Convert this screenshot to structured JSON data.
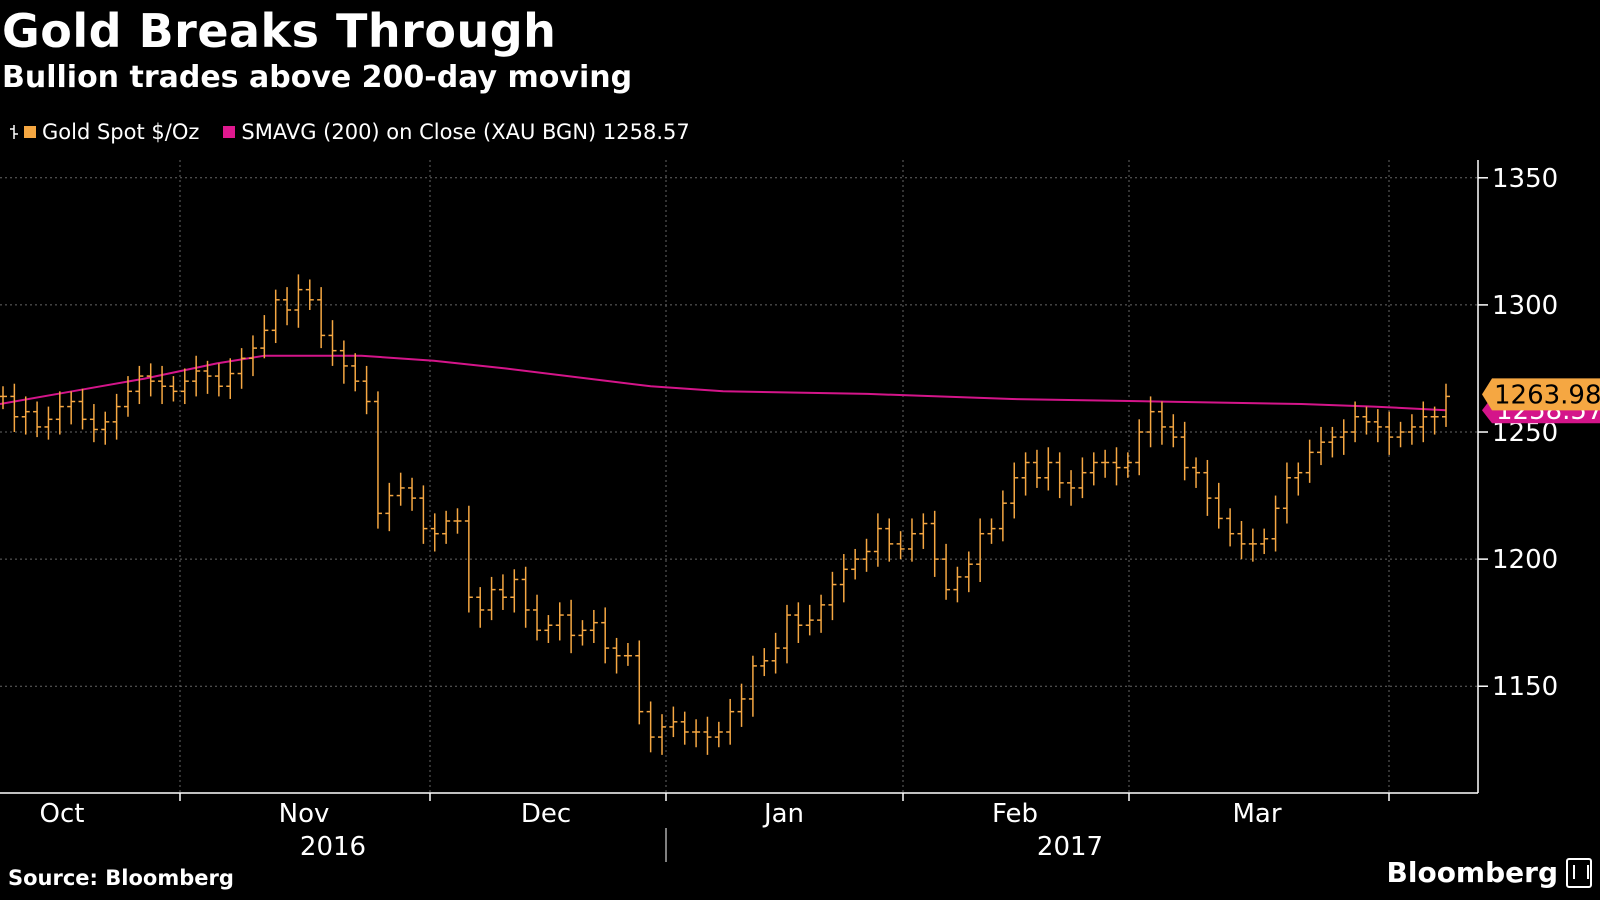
{
  "title": "Gold Breaks Through",
  "subtitle": "Bullion trades above 200-day moving",
  "source": "Source: Bloomberg",
  "brand": "Bloomberg",
  "legend": [
    {
      "label": "Gold Spot $/Oz",
      "color": "#f5a742"
    },
    {
      "label": "SMAVG (200) on Close (XAU BGN) 1258.57",
      "color": "#e0198f"
    }
  ],
  "colors": {
    "gold": "#f5a742",
    "sma": "#d4158a",
    "grid": "#666666",
    "axis": "#ffffff"
  },
  "chart_data": {
    "type": "line",
    "x_ticks": [
      "Oct",
      "Nov",
      "Dec",
      "Jan",
      "Feb",
      "Mar"
    ],
    "year_labels": [
      "2016",
      "2017"
    ],
    "y_ticks": [
      1150,
      1200,
      1250,
      1300,
      1350
    ],
    "ylim": [
      1108,
      1357
    ],
    "last_value_label": "1263.98",
    "sma_value_label": "1258.57",
    "series": [
      {
        "name": "Gold Spot $/Oz",
        "style": "ohlc",
        "values": [
          1264,
          1256,
          1258,
          1252,
          1255,
          1260,
          1262,
          1255,
          1251,
          1254,
          1260,
          1266,
          1272,
          1270,
          1268,
          1266,
          1270,
          1274,
          1272,
          1268,
          1273,
          1279,
          1283,
          1290,
          1302,
          1298,
          1306,
          1302,
          1288,
          1282,
          1276,
          1270,
          1262,
          1218,
          1225,
          1228,
          1224,
          1212,
          1210,
          1215,
          1215,
          1185,
          1180,
          1188,
          1185,
          1192,
          1180,
          1172,
          1174,
          1178,
          1170,
          1172,
          1175,
          1165,
          1162,
          1162,
          1140,
          1130,
          1134,
          1136,
          1132,
          1132,
          1130,
          1132,
          1140,
          1145,
          1158,
          1160,
          1165,
          1178,
          1174,
          1176,
          1182,
          1190,
          1196,
          1200,
          1203,
          1212,
          1206,
          1204,
          1210,
          1214,
          1200,
          1188,
          1193,
          1198,
          1210,
          1212,
          1222,
          1232,
          1238,
          1232,
          1238,
          1230,
          1228,
          1234,
          1238,
          1238,
          1236,
          1238,
          1250,
          1258,
          1252,
          1248,
          1236,
          1234,
          1224,
          1216,
          1210,
          1206,
          1206,
          1208,
          1220,
          1232,
          1234,
          1242,
          1246,
          1248,
          1250,
          1256,
          1254,
          1252,
          1248,
          1250,
          1252,
          1256,
          1256,
          1264
        ]
      },
      {
        "name": "SMAVG (200) on Close (XAU BGN) 1258.57",
        "style": "line",
        "x": [
          0,
          0.05,
          0.1,
          0.15,
          0.183,
          0.25,
          0.3,
          0.35,
          0.45,
          0.5,
          0.6,
          0.7,
          0.8,
          0.9,
          0.95,
          1.0
        ],
        "values": [
          1261,
          1266,
          1271,
          1277,
          1280,
          1280,
          1278,
          1275,
          1268,
          1266,
          1265,
          1263,
          1262,
          1261,
          1260,
          1258.57
        ]
      }
    ]
  }
}
